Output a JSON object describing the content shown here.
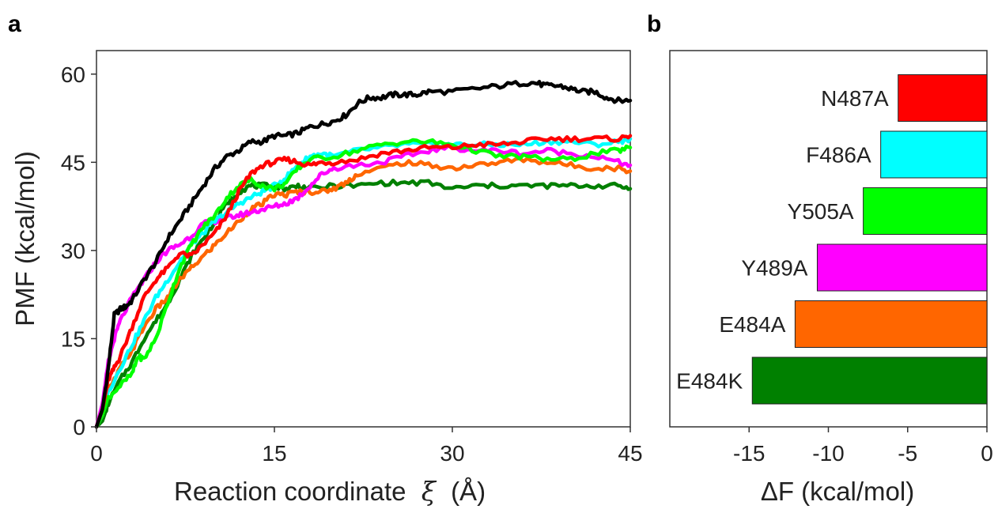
{
  "chart_data": [
    {
      "panel": "a",
      "type": "line",
      "xlabel_main": "Reaction coordinate",
      "xlabel_symbol": "ξ",
      "xlabel_unit": "(Å)",
      "ylabel": "PMF (kcal/mol)",
      "xlim": [
        0,
        45
      ],
      "ylim": [
        0,
        64
      ],
      "xticks": [
        "0",
        "15",
        "30",
        "45"
      ],
      "yticks": [
        "0",
        "15",
        "30",
        "45",
        "60"
      ],
      "grid": false,
      "series": [
        {
          "color": "#000000",
          "x": [
            0,
            0.5,
            1,
            1.5,
            2,
            2.5,
            3,
            4,
            5,
            6,
            7,
            8,
            9,
            10,
            11,
            12,
            13,
            14,
            15,
            16,
            17,
            18,
            19,
            20,
            21,
            22,
            23,
            24,
            25,
            26,
            27,
            28,
            30,
            32,
            34,
            36,
            37,
            38,
            39,
            40,
            41,
            42,
            43,
            44,
            45
          ],
          "y": [
            0,
            3,
            10,
            19,
            20,
            20.5,
            21.5,
            25,
            28,
            32,
            35,
            38,
            41,
            44,
            46,
            47,
            48.5,
            48.5,
            49.5,
            49.5,
            50,
            51,
            51.5,
            52,
            53,
            55,
            56,
            56,
            56.5,
            56.5,
            56.5,
            57,
            57,
            57.5,
            58,
            58.5,
            58.5,
            58,
            58,
            57.5,
            57,
            57,
            56,
            55.5,
            55.5
          ]
        },
        {
          "color": "#ff0000",
          "x": [
            0,
            0.5,
            1,
            1.5,
            2,
            3,
            4,
            5,
            6,
            7,
            8,
            9,
            10,
            11,
            12,
            13,
            14,
            15,
            16,
            17,
            18,
            19,
            20,
            22,
            24,
            26,
            28,
            30,
            32,
            34,
            36,
            38,
            40,
            42,
            44,
            45
          ],
          "y": [
            0,
            3,
            8,
            10,
            12,
            17,
            22,
            25,
            27,
            29.5,
            29,
            31,
            33,
            36,
            40,
            43,
            44.5,
            45,
            45.5,
            45,
            44.5,
            45,
            45,
            45.5,
            46.5,
            47,
            47.5,
            47.5,
            48,
            48,
            48.5,
            49,
            49,
            49,
            49,
            49.5
          ]
        },
        {
          "color": "#00ffff",
          "x": [
            0,
            0.5,
            1,
            2,
            3,
            4,
            5,
            6,
            7,
            8,
            9,
            10,
            11,
            12,
            13,
            14,
            15,
            16,
            17,
            18,
            19,
            20,
            22,
            24,
            26,
            28,
            30,
            32,
            34,
            36,
            38,
            40,
            42,
            44,
            45
          ],
          "y": [
            0,
            2,
            6,
            10,
            14,
            18,
            22,
            25,
            28,
            31,
            33,
            35,
            36.5,
            38,
            39,
            40,
            41,
            42.5,
            44.5,
            46,
            46.5,
            46,
            47,
            47.5,
            48,
            48,
            48,
            48,
            48,
            48,
            48.5,
            48.5,
            48,
            48.5,
            49
          ]
        },
        {
          "color": "#00ff00",
          "x": [
            0,
            0.5,
            1,
            2,
            3,
            3.5,
            4,
            5,
            6,
            7,
            8,
            9,
            10,
            11,
            12,
            13,
            14,
            15,
            16,
            17,
            18,
            20,
            22,
            24,
            26,
            28,
            30,
            32,
            34,
            36,
            38,
            40,
            42,
            44,
            45
          ],
          "y": [
            0,
            2,
            5,
            7,
            9,
            12,
            11.5,
            15,
            21,
            27,
            31,
            34,
            36,
            39,
            41,
            42,
            41,
            40.5,
            41.5,
            44,
            45.5,
            46,
            47,
            48,
            48.5,
            48.5,
            48,
            47,
            46,
            46,
            45.5,
            45.5,
            46.5,
            47,
            47.5
          ]
        },
        {
          "color": "#ff00ff",
          "x": [
            0,
            0.5,
            1,
            1.5,
            2,
            3,
            4,
            5,
            6,
            7,
            8,
            9,
            10,
            11,
            12,
            13,
            14,
            15,
            16,
            17,
            18,
            19,
            20,
            22,
            24,
            26,
            28,
            30,
            32,
            34,
            36,
            38,
            40,
            42,
            44,
            45
          ],
          "y": [
            0,
            4,
            11,
            15,
            18,
            22,
            25,
            28,
            30,
            31,
            32.5,
            34.5,
            35,
            35.5,
            36,
            36.5,
            37,
            37.5,
            38,
            39,
            41,
            43,
            44,
            44.5,
            45,
            46,
            47,
            47.5,
            47,
            47,
            46.5,
            47,
            46.5,
            46,
            45,
            44.5
          ]
        },
        {
          "color": "#ff6600",
          "x": [
            0,
            0.5,
            1,
            2,
            3,
            4,
            5,
            6,
            7,
            8,
            9,
            10,
            11,
            12,
            13,
            14,
            15,
            16,
            17,
            18,
            19,
            20,
            21,
            22,
            24,
            26,
            28,
            30,
            32,
            34,
            36,
            38,
            40,
            42,
            44,
            45
          ],
          "y": [
            0,
            2,
            6,
            10,
            13,
            17,
            20,
            22,
            25,
            27,
            29,
            31,
            33,
            35,
            37,
            38,
            39.5,
            39.5,
            40,
            40,
            40,
            40.5,
            41.5,
            43,
            44,
            45,
            44.5,
            44,
            44.5,
            45,
            45.5,
            45,
            44.5,
            44,
            44,
            43.5
          ]
        },
        {
          "color": "#008000",
          "x": [
            0,
            0.5,
            1,
            2,
            3,
            4,
            5,
            6,
            7,
            8,
            9,
            10,
            11,
            12,
            13,
            14,
            15,
            16,
            17,
            18,
            20,
            22,
            24,
            26,
            28,
            30,
            32,
            34,
            36,
            38,
            40,
            42,
            44,
            45
          ],
          "y": [
            0,
            1,
            4,
            8,
            11,
            15,
            18,
            21,
            25,
            29,
            32,
            35,
            38,
            40,
            41,
            41,
            41,
            40.5,
            41,
            40.5,
            41,
            41,
            41.5,
            41.5,
            41.5,
            40.5,
            41,
            41,
            41,
            41,
            41,
            41,
            41,
            40.5
          ]
        }
      ]
    },
    {
      "panel": "b",
      "type": "bar",
      "orientation": "horizontal",
      "xlabel": "ΔF (kcal/mol)",
      "xlim": [
        -20,
        0
      ],
      "xticks": [
        "-15",
        "-10",
        "-5",
        "0"
      ],
      "categories": [
        "N487A",
        "F486A",
        "Y505A",
        "Y489A",
        "E484A",
        "E484K"
      ],
      "values": [
        -5.6,
        -6.7,
        -7.8,
        -10.7,
        -12.1,
        -14.8
      ],
      "colors": [
        "#ff0000",
        "#00ffff",
        "#00ff00",
        "#ff00ff",
        "#ff6600",
        "#008000"
      ]
    }
  ]
}
